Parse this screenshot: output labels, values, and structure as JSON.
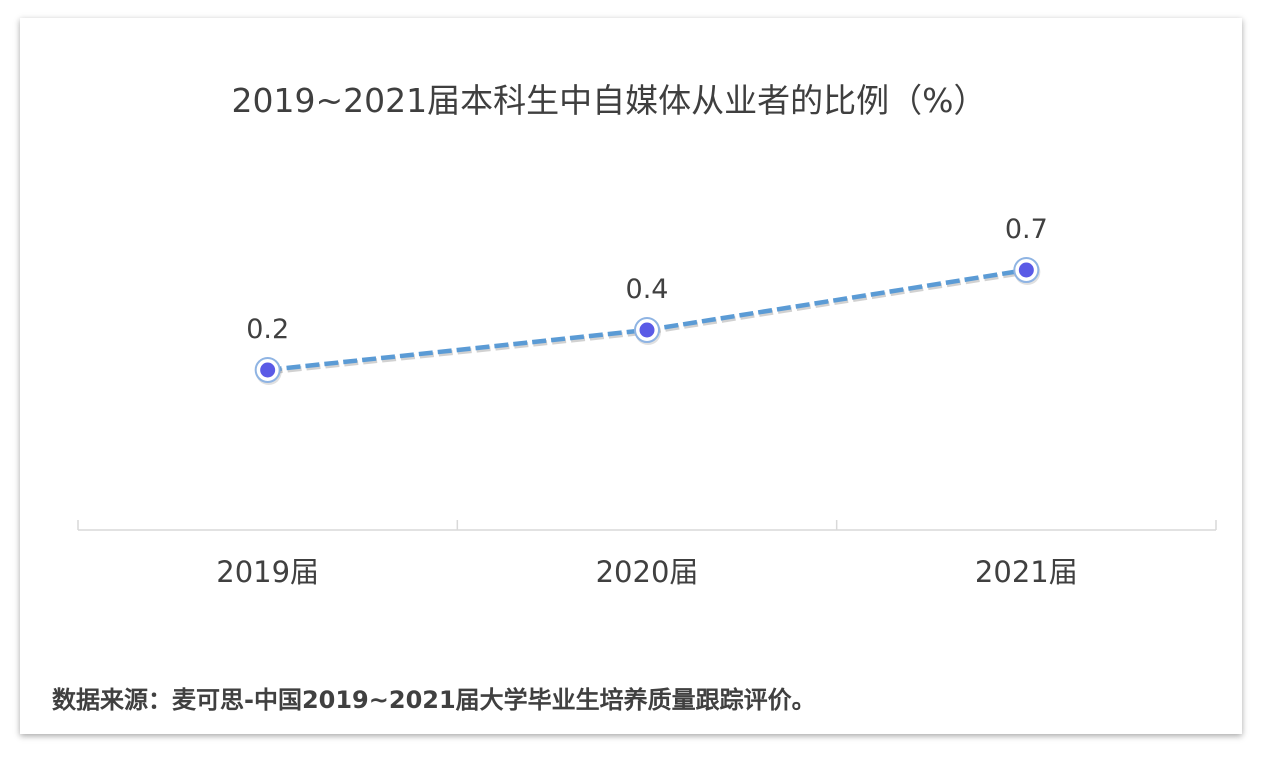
{
  "chart_data": {
    "type": "line",
    "title": "2019~2021届本科生中自媒体从业者的比例（%）",
    "categories": [
      "2019届",
      "2020届",
      "2021届"
    ],
    "series": [
      {
        "values": [
          0.2,
          0.4,
          0.7
        ]
      }
    ],
    "data_labels": [
      "0.2",
      "0.4",
      "0.7"
    ],
    "ylim": [
      -0.6,
      1.4
    ],
    "grid": false,
    "legend": "none",
    "line_style": "dashed",
    "colors": {
      "line": "#5b9bd5",
      "marker_fill": "#5a5ae6",
      "marker_ring": "#8fb4e3",
      "axis": "#d9d9d9",
      "text": "#404040"
    }
  },
  "source_note": "数据来源：麦可思-中国2019~2021届大学毕业生培养质量跟踪评价。"
}
